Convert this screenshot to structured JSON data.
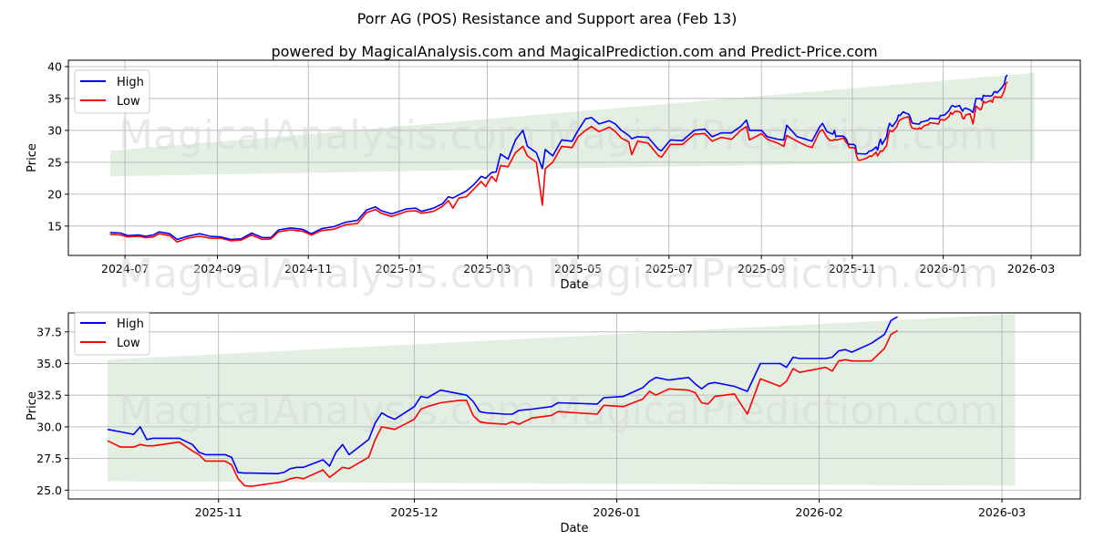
{
  "title": "Porr AG (POS) Resistance and Support area (Feb 13)",
  "subtitle": "powered by MagicalAnalysis.com and MagicalPrediction.com and Predict-Price.com",
  "watermarks": [
    "MagicalAnalysis.com",
    "MagicalPrediction.com"
  ],
  "colors": {
    "high": "#0000ff",
    "low": "#ff0000",
    "band": "#e3efe3",
    "grid": "#b0b0b0"
  },
  "chart_data": [
    {
      "type": "line",
      "name": "full-history",
      "xlabel": "Date",
      "ylabel": "Price",
      "xlim": [
        "2024-05-24",
        "2026-04-03"
      ],
      "ylim": [
        10.4,
        41
      ],
      "yticks": [
        15,
        20,
        25,
        30,
        35,
        40
      ],
      "xticks": [
        "2024-07",
        "2024-09",
        "2024-11",
        "2025-01",
        "2025-03",
        "2025-05",
        "2025-07",
        "2025-09",
        "2025-11",
        "2026-01",
        "2026-03"
      ],
      "grid": true,
      "legend": {
        "position": "top-left",
        "entries": [
          "High",
          "Low"
        ]
      },
      "band": {
        "start": "2024-06-21",
        "end": "2026-03-03",
        "start_range": [
          22.8,
          26.8
        ],
        "end_range": [
          25.3,
          39.0
        ]
      },
      "from": "2024-01-01"
    },
    {
      "type": "line",
      "name": "recent",
      "xlabel": "Date",
      "ylabel": "Price",
      "xlim": [
        "2025-10-09",
        "2026-03-13"
      ],
      "ylim": [
        24.3,
        39.0
      ],
      "yticks": [
        25.0,
        27.5,
        30.0,
        32.5,
        35.0,
        37.5
      ],
      "xticks": [
        "2025-11",
        "2025-12",
        "2026-01",
        "2026-02",
        "2026-03"
      ],
      "grid": true,
      "legend": {
        "position": "top-left",
        "entries": [
          "High",
          "Low"
        ]
      },
      "band": {
        "start": "2025-10-15",
        "end": "2026-03-03",
        "start_range": [
          25.7,
          35.3
        ],
        "end_range": [
          25.35,
          38.9
        ]
      },
      "from": "2025-10-15"
    }
  ],
  "series_data": {
    "dates": [
      "2024-06-21",
      "2024-06-28",
      "2024-07-03",
      "2024-07-10",
      "2024-07-15",
      "2024-07-20",
      "2024-07-24",
      "2024-07-31",
      "2024-08-05",
      "2024-08-12",
      "2024-08-20",
      "2024-08-27",
      "2024-09-03",
      "2024-09-10",
      "2024-09-17",
      "2024-09-24",
      "2024-10-01",
      "2024-10-07",
      "2024-10-12",
      "2024-10-20",
      "2024-10-28",
      "2024-11-03",
      "2024-11-10",
      "2024-11-18",
      "2024-11-26",
      "2024-12-04",
      "2024-12-10",
      "2024-12-16",
      "2024-12-20",
      "2024-12-27",
      "2025-01-06",
      "2025-01-12",
      "2025-01-16",
      "2025-01-24",
      "2025-01-30",
      "2025-02-03",
      "2025-02-06",
      "2025-02-10",
      "2025-02-15",
      "2025-02-20",
      "2025-02-25",
      "2025-02-28",
      "2025-03-04",
      "2025-03-07",
      "2025-03-10",
      "2025-03-15",
      "2025-03-20",
      "2025-03-25",
      "2025-03-28",
      "2025-04-03",
      "2025-04-07",
      "2025-04-09",
      "2025-04-14",
      "2025-04-20",
      "2025-04-27",
      "2025-05-01",
      "2025-05-06",
      "2025-05-10",
      "2025-05-15",
      "2025-05-22",
      "2025-05-26",
      "2025-05-30",
      "2025-06-04",
      "2025-06-06",
      "2025-06-10",
      "2025-06-17",
      "2025-06-24",
      "2025-06-26",
      "2025-07-02",
      "2025-07-10",
      "2025-07-18",
      "2025-07-25",
      "2025-07-30",
      "2025-08-05",
      "2025-08-12",
      "2025-08-18",
      "2025-08-22",
      "2025-08-24",
      "2025-09-01",
      "2025-09-05",
      "2025-09-12",
      "2025-09-16",
      "2025-09-18",
      "2025-09-25",
      "2025-10-01",
      "2025-10-05",
      "2025-10-10",
      "2025-10-12",
      "2025-10-15",
      "2025-10-17",
      "2025-10-19",
      "2025-10-20",
      "2025-10-21",
      "2025-10-22",
      "2025-10-26",
      "2025-10-28",
      "2025-10-29",
      "2025-10-30",
      "2025-11-02",
      "2025-11-03",
      "2025-11-04",
      "2025-11-05",
      "2025-11-06",
      "2025-11-10",
      "2025-11-11",
      "2025-11-12",
      "2025-11-13",
      "2025-11-14",
      "2025-11-17",
      "2025-11-18",
      "2025-11-19",
      "2025-11-20",
      "2025-11-21",
      "2025-11-24",
      "2025-11-25",
      "2025-11-26",
      "2025-11-27",
      "2025-11-28",
      "2025-12-01",
      "2025-12-02",
      "2025-12-03",
      "2025-12-05",
      "2025-12-08",
      "2025-12-09",
      "2025-12-10",
      "2025-12-11",
      "2025-12-12",
      "2025-12-15",
      "2025-12-16",
      "2025-12-17",
      "2025-12-19",
      "2025-12-22",
      "2025-12-23",
      "2025-12-29",
      "2025-12-30",
      "2026-01-02",
      "2026-01-05",
      "2026-01-06",
      "2026-01-07",
      "2026-01-09",
      "2026-01-12",
      "2026-01-13",
      "2026-01-14",
      "2026-01-15",
      "2026-01-16",
      "2026-01-19",
      "2026-01-21",
      "2026-01-23",
      "2026-01-26",
      "2026-01-27",
      "2026-01-28",
      "2026-01-29",
      "2026-02-02",
      "2026-02-03",
      "2026-02-04",
      "2026-02-05",
      "2026-02-06",
      "2026-02-09",
      "2026-02-11",
      "2026-02-12",
      "2026-02-13"
    ],
    "high": [
      14.0,
      13.9,
      13.5,
      13.6,
      13.4,
      13.6,
      14.1,
      13.8,
      12.9,
      13.4,
      13.8,
      13.4,
      13.3,
      12.9,
      13.0,
      13.9,
      13.2,
      13.2,
      14.4,
      14.7,
      14.5,
      13.8,
      14.6,
      14.9,
      15.6,
      15.9,
      17.5,
      18.0,
      17.4,
      16.9,
      17.7,
      17.8,
      17.3,
      17.8,
      18.5,
      19.6,
      19.4,
      19.9,
      20.5,
      21.5,
      22.8,
      22.5,
      23.4,
      23.5,
      26.3,
      25.5,
      28.5,
      30.0,
      27.5,
      26.5,
      24.0,
      27.0,
      26.0,
      28.5,
      28.3,
      30.0,
      31.8,
      32.0,
      31.0,
      31.5,
      31.0,
      30.0,
      29.2,
      28.7,
      29.0,
      28.9,
      27.0,
      26.8,
      28.5,
      28.4,
      30.0,
      30.2,
      29.0,
      29.6,
      29.6,
      30.6,
      31.6,
      30.0,
      30.0,
      29.0,
      28.6,
      28.5,
      30.8,
      29.0,
      28.6,
      28.3,
      30.5,
      31.1,
      29.8,
      29.6,
      29.4,
      30.0,
      29.0,
      29.1,
      29.1,
      28.6,
      28.0,
      27.8,
      27.8,
      27.6,
      26.4,
      26.35,
      26.35,
      26.3,
      26.4,
      26.7,
      26.8,
      26.8,
      27.4,
      26.9,
      28.0,
      28.6,
      27.8,
      29.0,
      30.3,
      31.1,
      30.8,
      30.6,
      31.6,
      32.4,
      32.3,
      32.9,
      32.6,
      32.5,
      32.0,
      31.2,
      31.1,
      31.0,
      31.0,
      31.3,
      31.4,
      31.6,
      31.9,
      31.8,
      32.3,
      32.4,
      33.1,
      33.6,
      33.9,
      33.7,
      33.9,
      33.4,
      33.0,
      33.4,
      33.5,
      33.2,
      32.8,
      35.0,
      35.0,
      34.7,
      35.5,
      35.4,
      35.4,
      35.5,
      36.0,
      36.1,
      35.9,
      36.6,
      37.3,
      38.4,
      38.7
    ],
    "low": [
      13.7,
      13.6,
      13.3,
      13.4,
      13.2,
      13.3,
      13.8,
      13.5,
      12.5,
      13.1,
      13.4,
      13.1,
      13.1,
      12.7,
      12.8,
      13.6,
      12.9,
      13.0,
      14.1,
      14.4,
      14.2,
      13.6,
      14.3,
      14.5,
      15.2,
      15.4,
      17.1,
      17.6,
      17.0,
      16.5,
      17.3,
      17.4,
      17.0,
      17.3,
      18.1,
      19.0,
      17.8,
      19.4,
      19.6,
      20.8,
      22.0,
      21.2,
      22.8,
      22.0,
      24.5,
      24.3,
      26.5,
      27.5,
      26.0,
      25.0,
      18.3,
      24.0,
      25.0,
      27.5,
      27.3,
      29.0,
      30.0,
      30.6,
      29.8,
      30.5,
      29.8,
      28.8,
      28.2,
      26.2,
      28.3,
      28.0,
      26.0,
      25.8,
      27.8,
      27.8,
      29.4,
      29.5,
      28.3,
      28.9,
      28.6,
      30.0,
      30.6,
      28.5,
      29.5,
      28.6,
      28.0,
      27.5,
      29.2,
      28.3,
      27.6,
      27.3,
      29.8,
      30.1,
      28.9,
      28.4,
      28.4,
      28.6,
      28.5,
      28.5,
      28.8,
      28.1,
      27.8,
      27.3,
      27.3,
      27.0,
      25.9,
      25.35,
      25.3,
      25.6,
      25.7,
      25.9,
      26.0,
      25.9,
      26.6,
      26.0,
      26.4,
      26.8,
      26.7,
      27.6,
      29.0,
      30.0,
      29.9,
      29.8,
      30.6,
      31.4,
      31.6,
      31.9,
      32.1,
      32.1,
      30.9,
      30.4,
      30.3,
      30.2,
      30.4,
      30.2,
      30.7,
      30.9,
      31.2,
      31.0,
      31.7,
      31.6,
      32.2,
      32.8,
      32.5,
      33.0,
      32.9,
      32.7,
      31.9,
      31.8,
      32.4,
      32.6,
      31.0,
      33.8,
      33.2,
      33.6,
      34.6,
      34.3,
      34.7,
      34.4,
      35.2,
      35.3,
      35.2,
      35.2,
      36.2,
      37.3,
      37.6
    ]
  }
}
